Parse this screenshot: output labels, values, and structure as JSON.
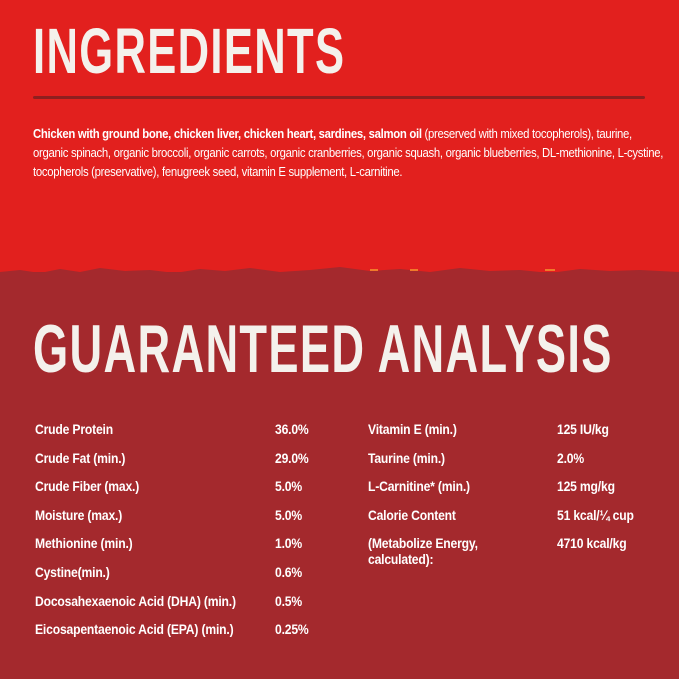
{
  "colors": {
    "top_background": "#e2201e",
    "bottom_background": "#a4292d",
    "text": "#ffffff"
  },
  "ingredients": {
    "title": "INGREDIENTS",
    "bold_text": "Chicken with ground bone, chicken liver, chicken heart, sardines, salmon oil",
    "text": " (preserved with mixed tocopherols), taurine, organic spinach, organic broccoli, organic carrots, organic cranberries, organic squash, organic blueberries, DL-methionine, L-cystine, tocopherols (preservative), fenugreek seed, vitamin E supplement, L-carnitine."
  },
  "analysis": {
    "title": "GUARANTEED ANALYSIS",
    "left": [
      {
        "label": "Crude Protein",
        "value": "36.0%"
      },
      {
        "label": "Crude Fat (min.)",
        "value": "29.0%"
      },
      {
        "label": "Crude Fiber (max.)",
        "value": "5.0%"
      },
      {
        "label": "Moisture (max.)",
        "value": "5.0%"
      },
      {
        "label": "Methionine (min.)",
        "value": "1.0%"
      },
      {
        "label": "Cystine(min.)",
        "value": "0.6%"
      },
      {
        "label": "Docosahexaenoic Acid (DHA) (min.)",
        "value": "0.5%"
      },
      {
        "label": "Eicosapentaenoic Acid (EPA) (min.)",
        "value": "0.25%"
      }
    ],
    "right": [
      {
        "label": "Vitamin E (min.)",
        "value": "125 IU/kg"
      },
      {
        "label": "Taurine (min.)",
        "value": "2.0%"
      },
      {
        "label": "L-Carnitine* (min.)",
        "value": "125 mg/kg"
      },
      {
        "label": "Calorie Content",
        "value": "51 kcal/¼ cup"
      },
      {
        "label": "(Metabolize Energy,\ncalculated):",
        "value": "4710 kcal/kg"
      }
    ]
  }
}
